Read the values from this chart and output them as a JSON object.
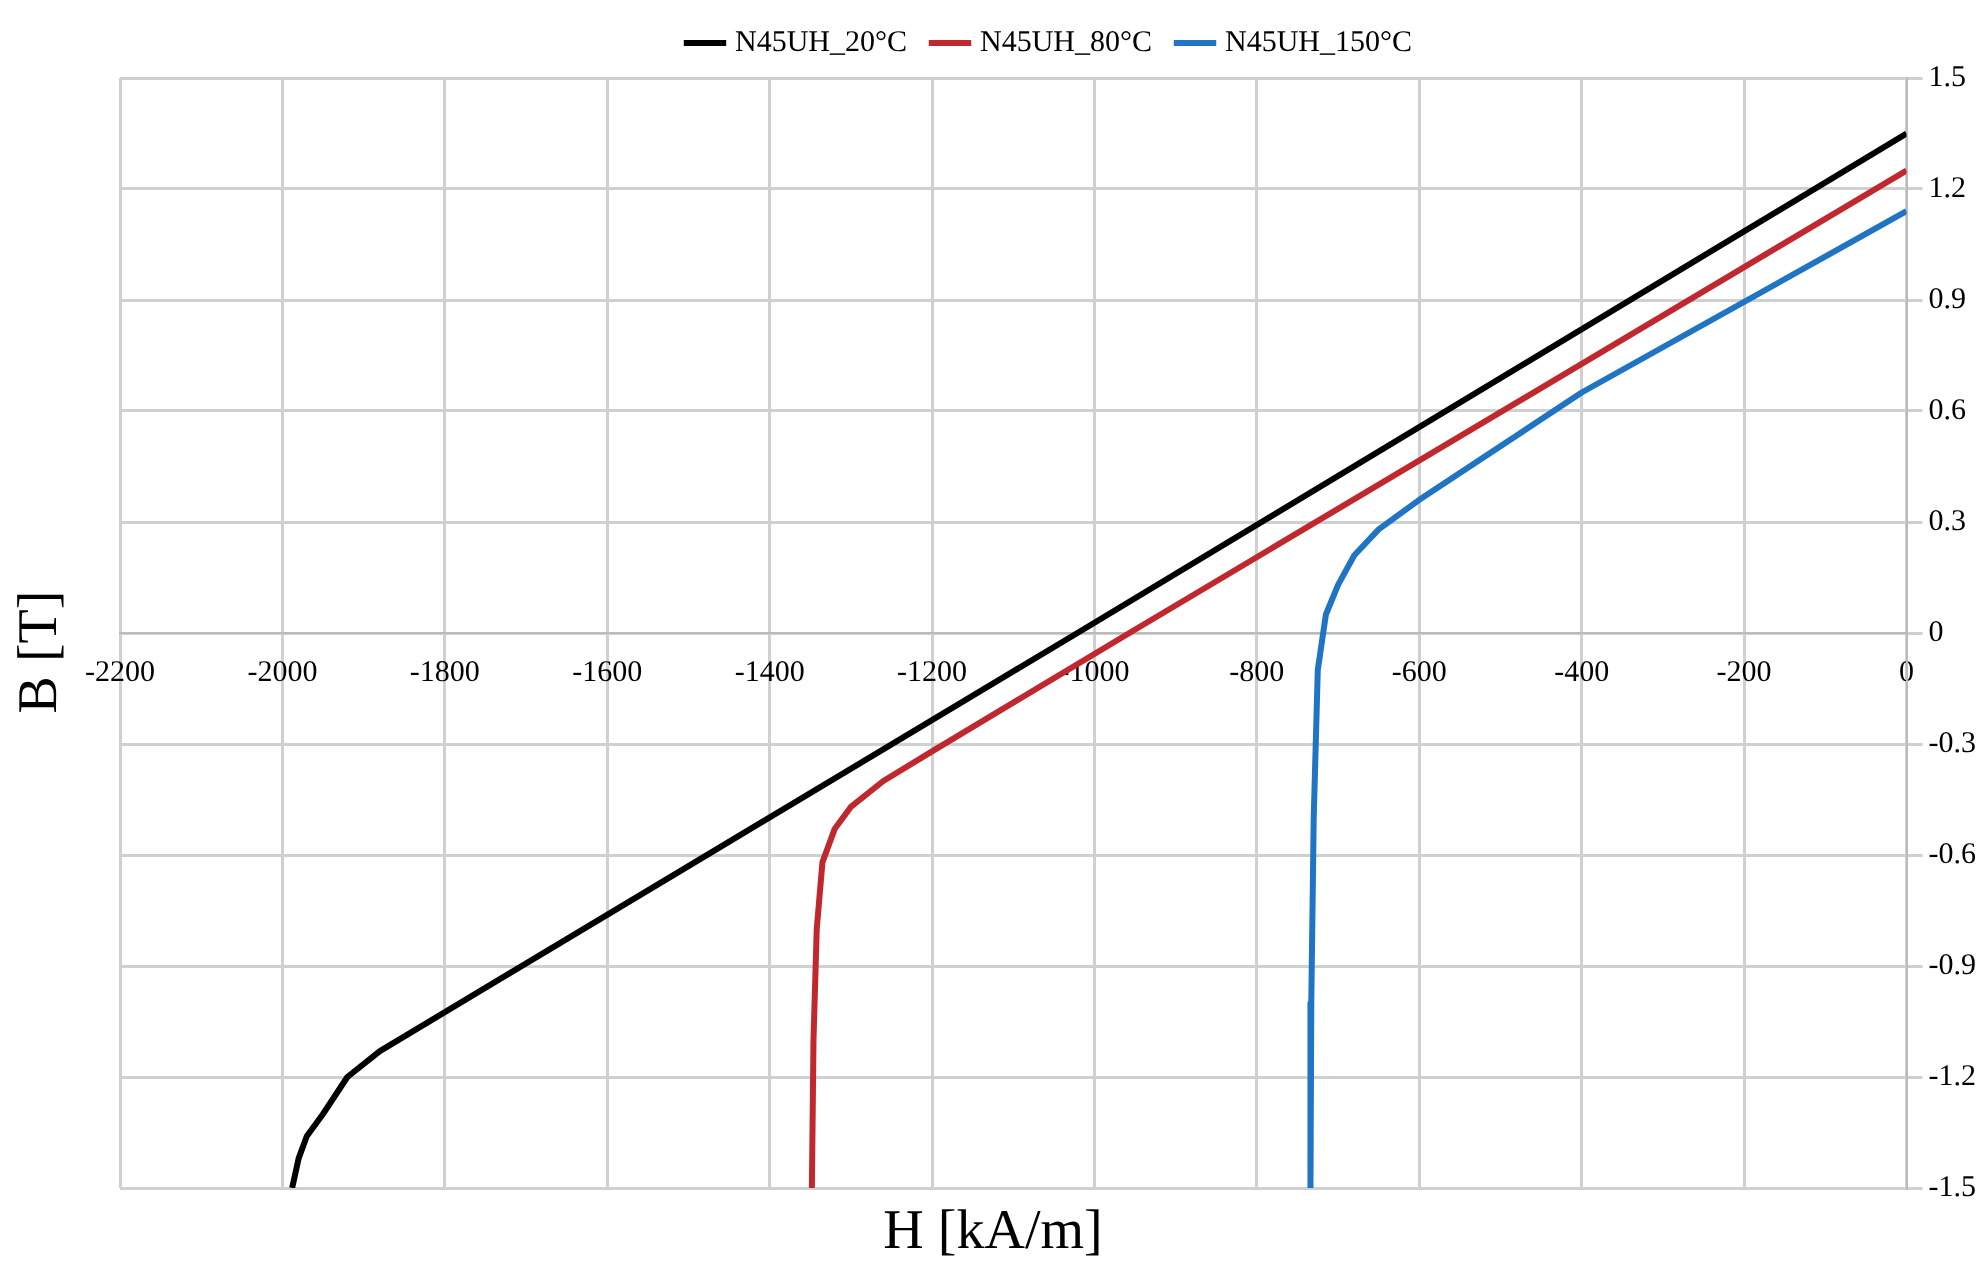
{
  "chart_data": {
    "type": "line",
    "xlabel": "H [kA/m]",
    "ylabel": "B [T]",
    "xlim": [
      -2200,
      0
    ],
    "xticks": [
      -2200,
      -2000,
      -1800,
      -1600,
      -1400,
      -1200,
      -1000,
      -800,
      -600,
      -400,
      -200,
      0
    ],
    "ylim": [
      -1.5,
      1.5
    ],
    "yticks": [
      -1.5,
      -1.2,
      -0.9,
      -0.6,
      -0.3,
      0,
      0.3,
      0.6,
      0.9,
      1.2,
      1.5
    ],
    "grid": true,
    "legend": "top",
    "marker": "none",
    "line_style": "solid",
    "series": [
      {
        "name": "N45UH_20°C",
        "color": "#000000",
        "x": [
          0,
          -1021,
          -1500,
          -1880,
          -1920,
          -1950,
          -1970,
          -1980,
          -1988
        ],
        "values": [
          1.35,
          0,
          -0.63,
          -1.13,
          -1.2,
          -1.3,
          -1.36,
          -1.42,
          -1.5
        ]
      },
      {
        "name": "N45UH_80°C",
        "color": "#c0282d",
        "x": [
          0,
          -957,
          -1200,
          -1260,
          -1300,
          -1320,
          -1335,
          -1342,
          -1346,
          -1348
        ],
        "values": [
          1.25,
          0,
          -0.32,
          -0.4,
          -0.47,
          -0.53,
          -0.62,
          -0.8,
          -1.1,
          -1.5
        ]
      },
      {
        "name": "N45UH_150°C",
        "color": "#1f74c4",
        "x": [
          0,
          -400,
          -600,
          -650,
          -680,
          -700,
          -715,
          -725,
          -730,
          -733,
          -734
        ],
        "values": [
          1.14,
          0.65,
          0.36,
          0.28,
          0.21,
          0.13,
          0.05,
          -0.1,
          -0.5,
          -1.0,
          -1.5
        ]
      }
    ]
  }
}
